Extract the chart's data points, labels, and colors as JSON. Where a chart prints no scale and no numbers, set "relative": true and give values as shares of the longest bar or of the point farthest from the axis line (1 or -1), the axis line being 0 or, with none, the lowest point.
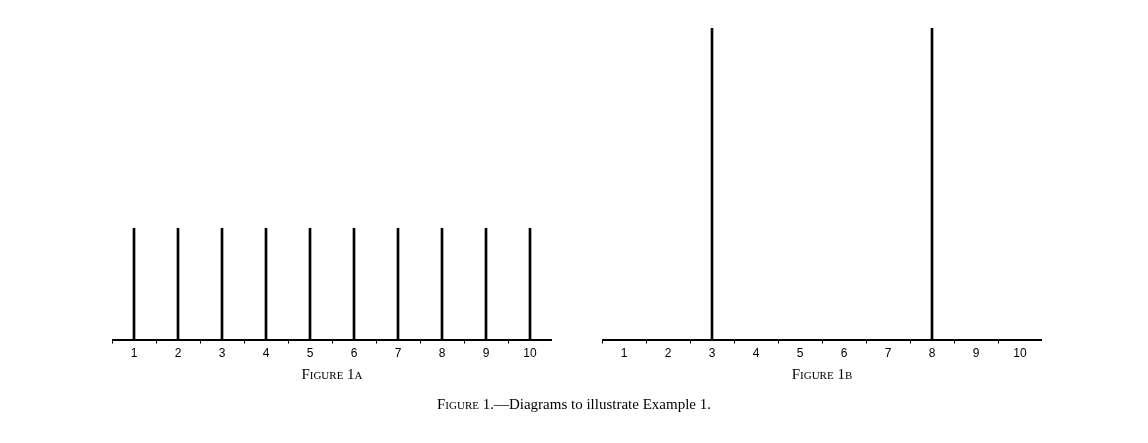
{
  "chart_data": [
    {
      "type": "bar",
      "xlabel": "Figure 1a",
      "categories": [
        "1",
        "2",
        "3",
        "4",
        "5",
        "6",
        "7",
        "8",
        "9",
        "10"
      ],
      "relative": true,
      "color": "#000000",
      "values": [
        1,
        1,
        1,
        1,
        1,
        1,
        1,
        1,
        1,
        1
      ],
      "grid": false,
      "legend": false,
      "annotations": [
        "Figure 1.—Diagrams to illustrate Example 1."
      ]
    },
    {
      "type": "bar",
      "xlabel": "Figure 1b",
      "categories": [
        "1",
        "2",
        "3",
        "4",
        "5",
        "6",
        "7",
        "8",
        "9",
        "10"
      ],
      "relative": true,
      "color": "#000000",
      "values": [
        0,
        0,
        1,
        0,
        0,
        0,
        0,
        1,
        0,
        0
      ],
      "grid": false,
      "legend": false
    }
  ]
}
